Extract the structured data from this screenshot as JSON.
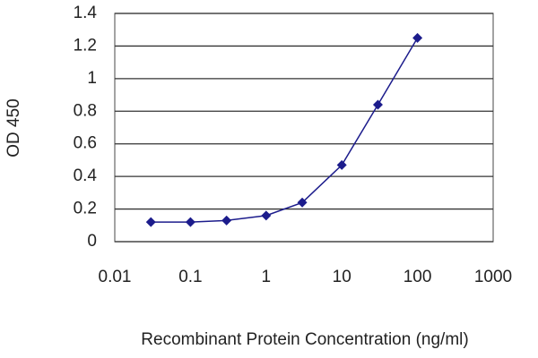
{
  "chart_data": {
    "type": "line",
    "y_label": "OD 450",
    "x_label": "Recombinant Protein Concentration (ng/ml)",
    "x": [
      0.03,
      0.1,
      0.3,
      1,
      3,
      10,
      30,
      100
    ],
    "values": [
      0.12,
      0.12,
      0.13,
      0.16,
      0.24,
      0.47,
      0.84,
      1.25
    ],
    "color": "#1c1c8c",
    "xlog": true,
    "xlim": [
      0.01,
      1000
    ],
    "xticks": [
      0.01,
      0.1,
      1,
      10,
      100,
      1000
    ],
    "ylim": [
      0,
      1.4
    ],
    "yticks": [
      0,
      0.2,
      0.4,
      0.6,
      0.8,
      1,
      1.2,
      1.4
    ],
    "grid": true
  }
}
